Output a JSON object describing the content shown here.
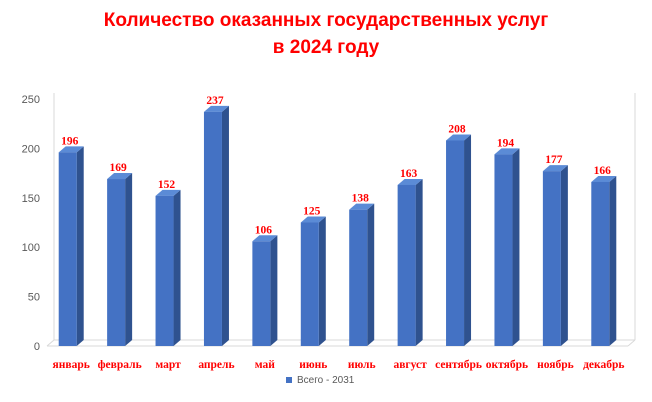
{
  "chart_data": {
    "type": "bar",
    "title_line1": "Количество оказанных государственных услуг",
    "title_line2": "в 2024 году",
    "categories": [
      "январь",
      "февраль",
      "март",
      "апрель",
      "май",
      "июнь",
      "июль",
      "август",
      "сентябрь",
      "октябрь",
      "ноябрь",
      "декабрь"
    ],
    "series": [
      {
        "name": "Всего  - 2031",
        "values": [
          196,
          169,
          152,
          237,
          106,
          125,
          138,
          163,
          208,
          194,
          177,
          166
        ]
      }
    ],
    "ylim": [
      0,
      250
    ],
    "yticks": [
      0,
      50,
      100,
      150,
      200,
      250
    ],
    "grid": false,
    "legend": "bottom",
    "colors": {
      "bar_front": "#4472c4",
      "bar_side": "#2f528f",
      "bar_top": "#5b8bd6",
      "labels": "#ff0000",
      "title": "#ff0000"
    }
  }
}
